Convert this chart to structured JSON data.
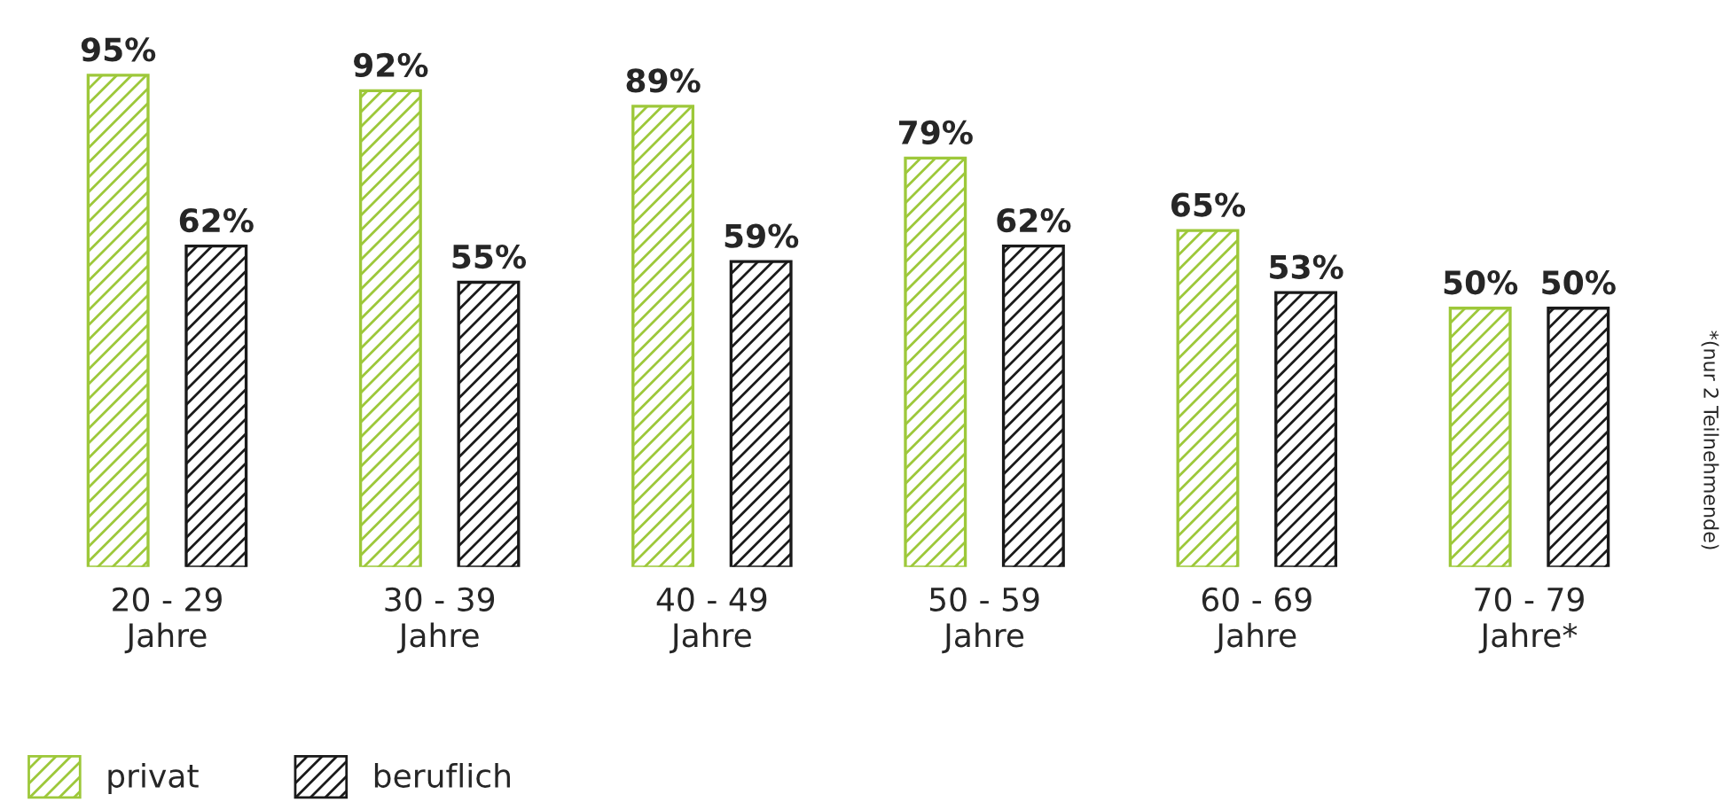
{
  "chart_data": {
    "type": "bar",
    "categories": [
      "20 - 29\nJahre",
      "30 - 39\nJahre",
      "40 - 49\nJahre",
      "50 - 59\nJahre",
      "60 - 69\nJahre",
      "70 - 79\nJahre*"
    ],
    "series": [
      {
        "name": "privat",
        "color": "#9dc83a",
        "values": [
          95,
          92,
          89,
          79,
          65,
          50
        ],
        "value_labels": [
          "95%",
          "92%",
          "89%",
          "79%",
          "65%",
          "50%"
        ]
      },
      {
        "name": "beruflich",
        "color": "#1a1a1a",
        "values": [
          62,
          55,
          59,
          62,
          53,
          50
        ],
        "value_labels": [
          "62%",
          "55%",
          "59%",
          "62%",
          "53%",
          "50%"
        ]
      }
    ],
    "legend": "bottom left",
    "grid": false,
    "annotations": [
      "*(nur 2 Teilnehmende)"
    ]
  }
}
